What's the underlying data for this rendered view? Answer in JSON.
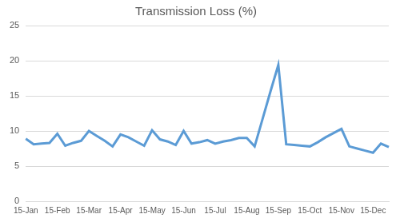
{
  "chart_data": {
    "type": "line",
    "title": "Transmission Loss (%)",
    "categories": [
      "15-Jan",
      null,
      null,
      null,
      "15-Feb",
      null,
      null,
      null,
      "15-Mar",
      null,
      null,
      null,
      "15-Apr",
      null,
      null,
      null,
      "15-May",
      null,
      null,
      null,
      "15-Jun",
      null,
      null,
      null,
      "15-Jul",
      null,
      null,
      null,
      "15-Aug",
      null,
      null,
      null,
      "15-Sep",
      null,
      null,
      null,
      "15-Oct",
      null,
      null,
      null,
      "15-Nov",
      null,
      null,
      null,
      "15-Dec",
      null,
      null
    ],
    "values": [
      8.9,
      8.1,
      8.2,
      8.3,
      9.6,
      7.9,
      8.3,
      8.6,
      10.0,
      9.3,
      8.6,
      7.8,
      9.5,
      9.1,
      8.5,
      7.9,
      10.1,
      8.8,
      8.5,
      8.0,
      10.0,
      8.2,
      8.4,
      8.7,
      8.2,
      8.5,
      8.7,
      9.0,
      9.0,
      7.8,
      11.7,
      15.6,
      19.4,
      8.1,
      8.0,
      7.9,
      7.8,
      8.4,
      9.1,
      9.7,
      10.3,
      7.8,
      7.5,
      7.2,
      6.9,
      8.2,
      7.7
    ],
    "color": "#5b9bd5",
    "ylim": [
      0,
      25
    ],
    "yticks": [
      0,
      5,
      10,
      15,
      20,
      25
    ],
    "grid": true
  }
}
